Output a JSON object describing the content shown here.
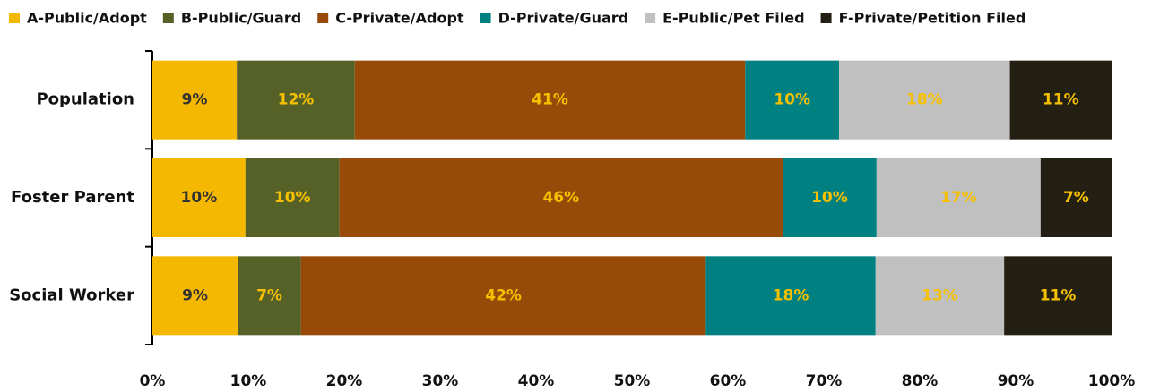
{
  "chart_data": {
    "type": "stacked-barh",
    "categories": [
      "Population",
      "Foster Parent",
      "Social Worker"
    ],
    "series": [
      {
        "name": "A-Public/Adopt",
        "color": "#f5b800",
        "values": [
          8.8,
          9.7,
          8.9
        ],
        "value_labels": [
          "9%",
          "10%",
          "9%"
        ]
      },
      {
        "name": "B-Public/Guard",
        "color": "#556127",
        "values": [
          12.3,
          9.8,
          6.6
        ],
        "value_labels": [
          "12%",
          "10%",
          "7%"
        ]
      },
      {
        "name": "C-Private/Adopt",
        "color": "#984a08",
        "values": [
          40.7,
          46.2,
          42.2
        ],
        "value_labels": [
          "41%",
          "46%",
          "42%"
        ]
      },
      {
        "name": "D-Private/Guard",
        "color": "#008080",
        "values": [
          9.8,
          9.8,
          17.7
        ],
        "value_labels": [
          "10%",
          "10%",
          "18%"
        ]
      },
      {
        "name": "E-Public/Pet Filed",
        "color": "#c0c0c0",
        "values": [
          17.8,
          17.1,
          13.4
        ],
        "value_labels": [
          "18%",
          "17%",
          "13%"
        ]
      },
      {
        "name": "F-Private/Petition Filed",
        "color": "#231f12",
        "values": [
          10.6,
          7.4,
          11.2
        ],
        "value_labels": [
          "11%",
          "7%",
          "11%"
        ]
      }
    ],
    "xlim": [
      0,
      100
    ],
    "xticks": [
      {
        "value": 0,
        "label": "0%"
      },
      {
        "value": 10,
        "label": "10%"
      },
      {
        "value": 20,
        "label": "20%"
      },
      {
        "value": 30,
        "label": "30%"
      },
      {
        "value": 40,
        "label": "40%"
      },
      {
        "value": 50,
        "label": "50%"
      },
      {
        "value": 60,
        "label": "60%"
      },
      {
        "value": 70,
        "label": "70%"
      },
      {
        "value": 80,
        "label": "80%"
      },
      {
        "value": 90,
        "label": "90%"
      },
      {
        "value": 100,
        "label": "100%"
      }
    ],
    "legend": "top"
  }
}
